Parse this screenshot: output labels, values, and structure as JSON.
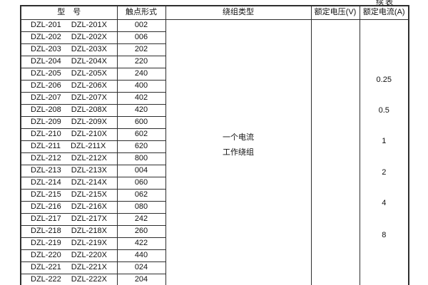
{
  "continuation_label": "续表",
  "headers": {
    "model": "型　号",
    "contact_form": "触点形式",
    "winding_type": "绕组类型",
    "rated_voltage": "额定电压(V)",
    "rated_current": "额定电流(A)"
  },
  "rows": [
    {
      "model": "DZL-201",
      "model_x": "DZL-201X",
      "contact_form": "002"
    },
    {
      "model": "DZL-202",
      "model_x": "DZL-202X",
      "contact_form": "006"
    },
    {
      "model": "DZL-203",
      "model_x": "DZL-203X",
      "contact_form": "202"
    },
    {
      "model": "DZL-204",
      "model_x": "DZL-204X",
      "contact_form": "220"
    },
    {
      "model": "DZL-205",
      "model_x": "DZL-205X",
      "contact_form": "240"
    },
    {
      "model": "DZL-206",
      "model_x": "DZL-206X",
      "contact_form": "400"
    },
    {
      "model": "DZL-207",
      "model_x": "DZL-207X",
      "contact_form": "402"
    },
    {
      "model": "DZL-208",
      "model_x": "DZL-208X",
      "contact_form": "420"
    },
    {
      "model": "DZL-209",
      "model_x": "DZL-209X",
      "contact_form": "600"
    },
    {
      "model": "DZL-210",
      "model_x": "DZL-210X",
      "contact_form": "602"
    },
    {
      "model": "DZL-211",
      "model_x": "DZL-211X",
      "contact_form": "620"
    },
    {
      "model": "DZL-212",
      "model_x": "DZL-212X",
      "contact_form": "800"
    },
    {
      "model": "DZL-213",
      "model_x": "DZL-213X",
      "contact_form": "004"
    },
    {
      "model": "DZL-214",
      "model_x": "DZL-214X",
      "contact_form": "060"
    },
    {
      "model": "DZL-215",
      "model_x": "DZL-215X",
      "contact_form": "062"
    },
    {
      "model": "DZL-216",
      "model_x": "DZL-216X",
      "contact_form": "080"
    },
    {
      "model": "DZL-217",
      "model_x": "DZL-217X",
      "contact_form": "242"
    },
    {
      "model": "DZL-218",
      "model_x": "DZL-218X",
      "contact_form": "260"
    },
    {
      "model": "DZL-219",
      "model_x": "DZL-219X",
      "contact_form": "422"
    },
    {
      "model": "DZL-220",
      "model_x": "DZL-220X",
      "contact_form": "440"
    },
    {
      "model": "DZL-221",
      "model_x": "DZL-221X",
      "contact_form": "024"
    },
    {
      "model": "DZL-222",
      "model_x": "DZL-222X",
      "contact_form": "204"
    }
  ],
  "winding_type_lines": [
    "一个电流",
    "工作绕组"
  ],
  "rated_current_values": [
    "0.25",
    "0.5",
    "1",
    "2",
    "4",
    "8"
  ],
  "colors": {
    "border": "#2e2e2e",
    "text": "#111111",
    "background": "#ffffff"
  }
}
